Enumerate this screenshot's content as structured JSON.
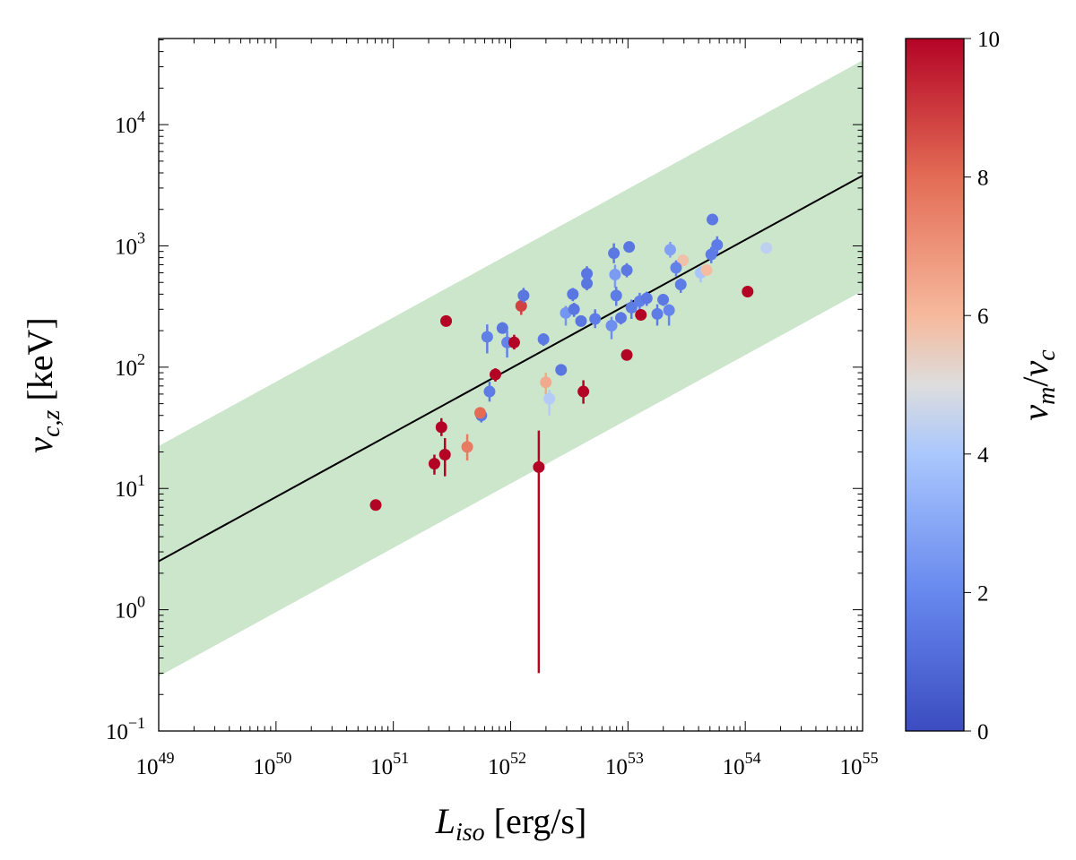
{
  "chart_data": {
    "type": "scatter",
    "xlabel": {
      "main": "L",
      "sub": "iso",
      "unit": " [erg/s]"
    },
    "ylabel": {
      "main": "ν",
      "sub": "c,z",
      "unit": " [keV]"
    },
    "colorbar_label": {
      "num": "ν",
      "num_sub": "m",
      "slash": "/",
      "den": "ν",
      "den_sub": "c"
    },
    "xscale": "log",
    "yscale": "log",
    "xlim_log10": [
      49,
      55
    ],
    "ylim_log10": [
      -1,
      4.71
    ],
    "xticks": [
      {
        "base": "10",
        "exp": "49"
      },
      {
        "base": "10",
        "exp": "50"
      },
      {
        "base": "10",
        "exp": "51"
      },
      {
        "base": "10",
        "exp": "52"
      },
      {
        "base": "10",
        "exp": "53"
      },
      {
        "base": "10",
        "exp": "54"
      },
      {
        "base": "10",
        "exp": "55"
      }
    ],
    "yticks": [
      {
        "base": "10",
        "exp": "−1"
      },
      {
        "base": "10",
        "exp": "0"
      },
      {
        "base": "10",
        "exp": "1"
      },
      {
        "base": "10",
        "exp": "2"
      },
      {
        "base": "10",
        "exp": "3"
      },
      {
        "base": "10",
        "exp": "4"
      }
    ],
    "colorbar": {
      "range": [
        0,
        10
      ],
      "ticks": [
        "0",
        "2",
        "4",
        "6",
        "8",
        "10"
      ],
      "colormap": "coolwarm",
      "stops": [
        [
          0,
          "#3b4cc0"
        ],
        [
          2,
          "#6788ee"
        ],
        [
          4,
          "#aac7fd"
        ],
        [
          5,
          "#dddddd"
        ],
        [
          6,
          "#f6b99c"
        ],
        [
          8,
          "#e36c55"
        ],
        [
          10,
          "#b40426"
        ]
      ]
    },
    "fit_line": {
      "log10_y_at_x49": 0.4,
      "slope": 0.53,
      "color": "#000000"
    },
    "band": {
      "half_width_dex": 0.95,
      "color": "#cce6cc"
    },
    "points_columns": [
      "log10_L",
      "nu_keV",
      "nu_m_over_nu_c",
      "err_lo_keV",
      "err_hi_keV"
    ],
    "points": [
      [
        50.85,
        7.3,
        10,
        7.3,
        7.3
      ],
      [
        51.45,
        240,
        10,
        240,
        240
      ],
      [
        51.41,
        32,
        10,
        27,
        38
      ],
      [
        51.44,
        19,
        10,
        12.6,
        26
      ],
      [
        51.35,
        16,
        10,
        13,
        19
      ],
      [
        51.63,
        22,
        7.6,
        17,
        28
      ],
      [
        51.75,
        40,
        1.5,
        35,
        46
      ],
      [
        51.74,
        42,
        8,
        42,
        42
      ],
      [
        51.82,
        63,
        1.6,
        52,
        76
      ],
      [
        51.87,
        87,
        10,
        76,
        98
      ],
      [
        51.8,
        178,
        1.7,
        130,
        225
      ],
      [
        51.93,
        210,
        1.4,
        190,
        235
      ],
      [
        51.97,
        160,
        1.8,
        120,
        200
      ],
      [
        52.03,
        160,
        10,
        140,
        185
      ],
      [
        52.09,
        320,
        8.8,
        270,
        330
      ],
      [
        52.11,
        390,
        1.4,
        340,
        450
      ],
      [
        52.28,
        170,
        1.5,
        150,
        190
      ],
      [
        52.3,
        75,
        6.4,
        60,
        90
      ],
      [
        52.33,
        55,
        4.2,
        40,
        65
      ],
      [
        52.24,
        15,
        10,
        0.3,
        30
      ],
      [
        52.43,
        95,
        1.4,
        85,
        105
      ],
      [
        52.62,
        63,
        10,
        50,
        78
      ],
      [
        52.47,
        280,
        2.4,
        220,
        320
      ],
      [
        52.54,
        300,
        1.4,
        260,
        340
      ],
      [
        52.53,
        400,
        1.4,
        350,
        450
      ],
      [
        52.6,
        240,
        1.4,
        240,
        240
      ],
      [
        52.65,
        490,
        1.4,
        430,
        550
      ],
      [
        52.65,
        590,
        1.4,
        520,
        680
      ],
      [
        52.72,
        250,
        1.6,
        210,
        300
      ],
      [
        52.88,
        870,
        1.5,
        720,
        1050
      ],
      [
        52.89,
        580,
        2.6,
        450,
        700
      ],
      [
        52.9,
        390,
        1.6,
        320,
        460
      ],
      [
        52.86,
        220,
        2.2,
        170,
        260
      ],
      [
        52.94,
        255,
        1.5,
        225,
        285
      ],
      [
        52.99,
        630,
        1.5,
        550,
        720
      ],
      [
        53.01,
        980,
        1.4,
        980,
        980
      ],
      [
        52.99,
        126,
        10,
        126,
        126
      ],
      [
        53.03,
        310,
        1.6,
        250,
        360
      ],
      [
        53.1,
        350,
        1.7,
        290,
        410
      ],
      [
        53.16,
        370,
        1.5,
        320,
        420
      ],
      [
        53.11,
        270,
        10,
        270,
        270
      ],
      [
        53.3,
        360,
        1.5,
        320,
        400
      ],
      [
        53.25,
        275,
        1.6,
        220,
        330
      ],
      [
        53.35,
        295,
        1.9,
        220,
        330
      ],
      [
        53.36,
        930,
        2.8,
        800,
        1080
      ],
      [
        53.47,
        760,
        5.8,
        760,
        760
      ],
      [
        53.41,
        660,
        1.8,
        560,
        760
      ],
      [
        53.45,
        480,
        1.6,
        410,
        540
      ],
      [
        53.62,
        600,
        3.9,
        500,
        680
      ],
      [
        53.67,
        630,
        5.9,
        630,
        630
      ],
      [
        53.72,
        1650,
        1.5,
        1500,
        1800
      ],
      [
        53.71,
        850,
        1.6,
        720,
        980
      ],
      [
        53.76,
        1020,
        1.6,
        850,
        1200
      ],
      [
        54.18,
        960,
        4.4,
        960,
        960
      ],
      [
        54.02,
        420,
        10,
        420,
        420
      ]
    ]
  }
}
